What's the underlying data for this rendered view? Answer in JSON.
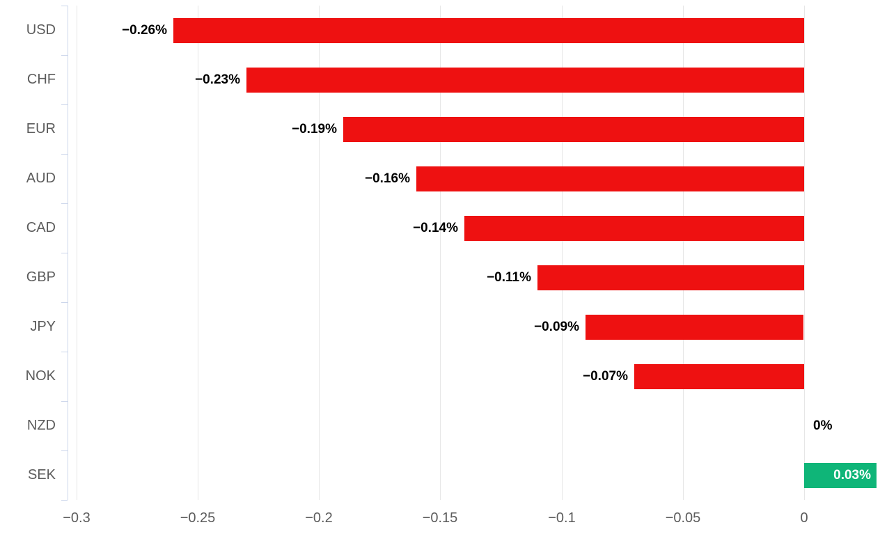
{
  "chart_data": {
    "type": "bar",
    "orientation": "horizontal",
    "title": "",
    "xlabel": "",
    "ylabel": "",
    "categories": [
      "USD",
      "CHF",
      "EUR",
      "AUD",
      "CAD",
      "GBP",
      "JPY",
      "NOK",
      "NZD",
      "SEK"
    ],
    "values": [
      -0.26,
      -0.23,
      -0.19,
      -0.16,
      -0.14,
      -0.11,
      -0.09,
      -0.07,
      0,
      0.03
    ],
    "value_labels": [
      "−0.26%",
      "−0.23%",
      "−0.19%",
      "−0.16%",
      "−0.14%",
      "−0.11%",
      "−0.09%",
      "−0.07%",
      "0%",
      "0.03%"
    ],
    "xticks": [
      -0.3,
      -0.25,
      -0.2,
      -0.15,
      -0.1,
      -0.05,
      0
    ],
    "xtick_labels": [
      "−0.3",
      "−0.25",
      "−0.2",
      "−0.15",
      "−0.1",
      "−0.05",
      "0"
    ],
    "xlim": [
      -0.3,
      0.0313
    ],
    "grid": true,
    "legend": "none",
    "colors": {
      "negative_bar": "#ee1111",
      "positive_bar": "#0fb578",
      "grid_line": "#e6e6e6",
      "axis_line": "#ccd6eb",
      "axis_text": "#5c5c5c",
      "label_text": "#000000",
      "label_text_inside": "#ffffff",
      "background": "#ffffff"
    }
  }
}
